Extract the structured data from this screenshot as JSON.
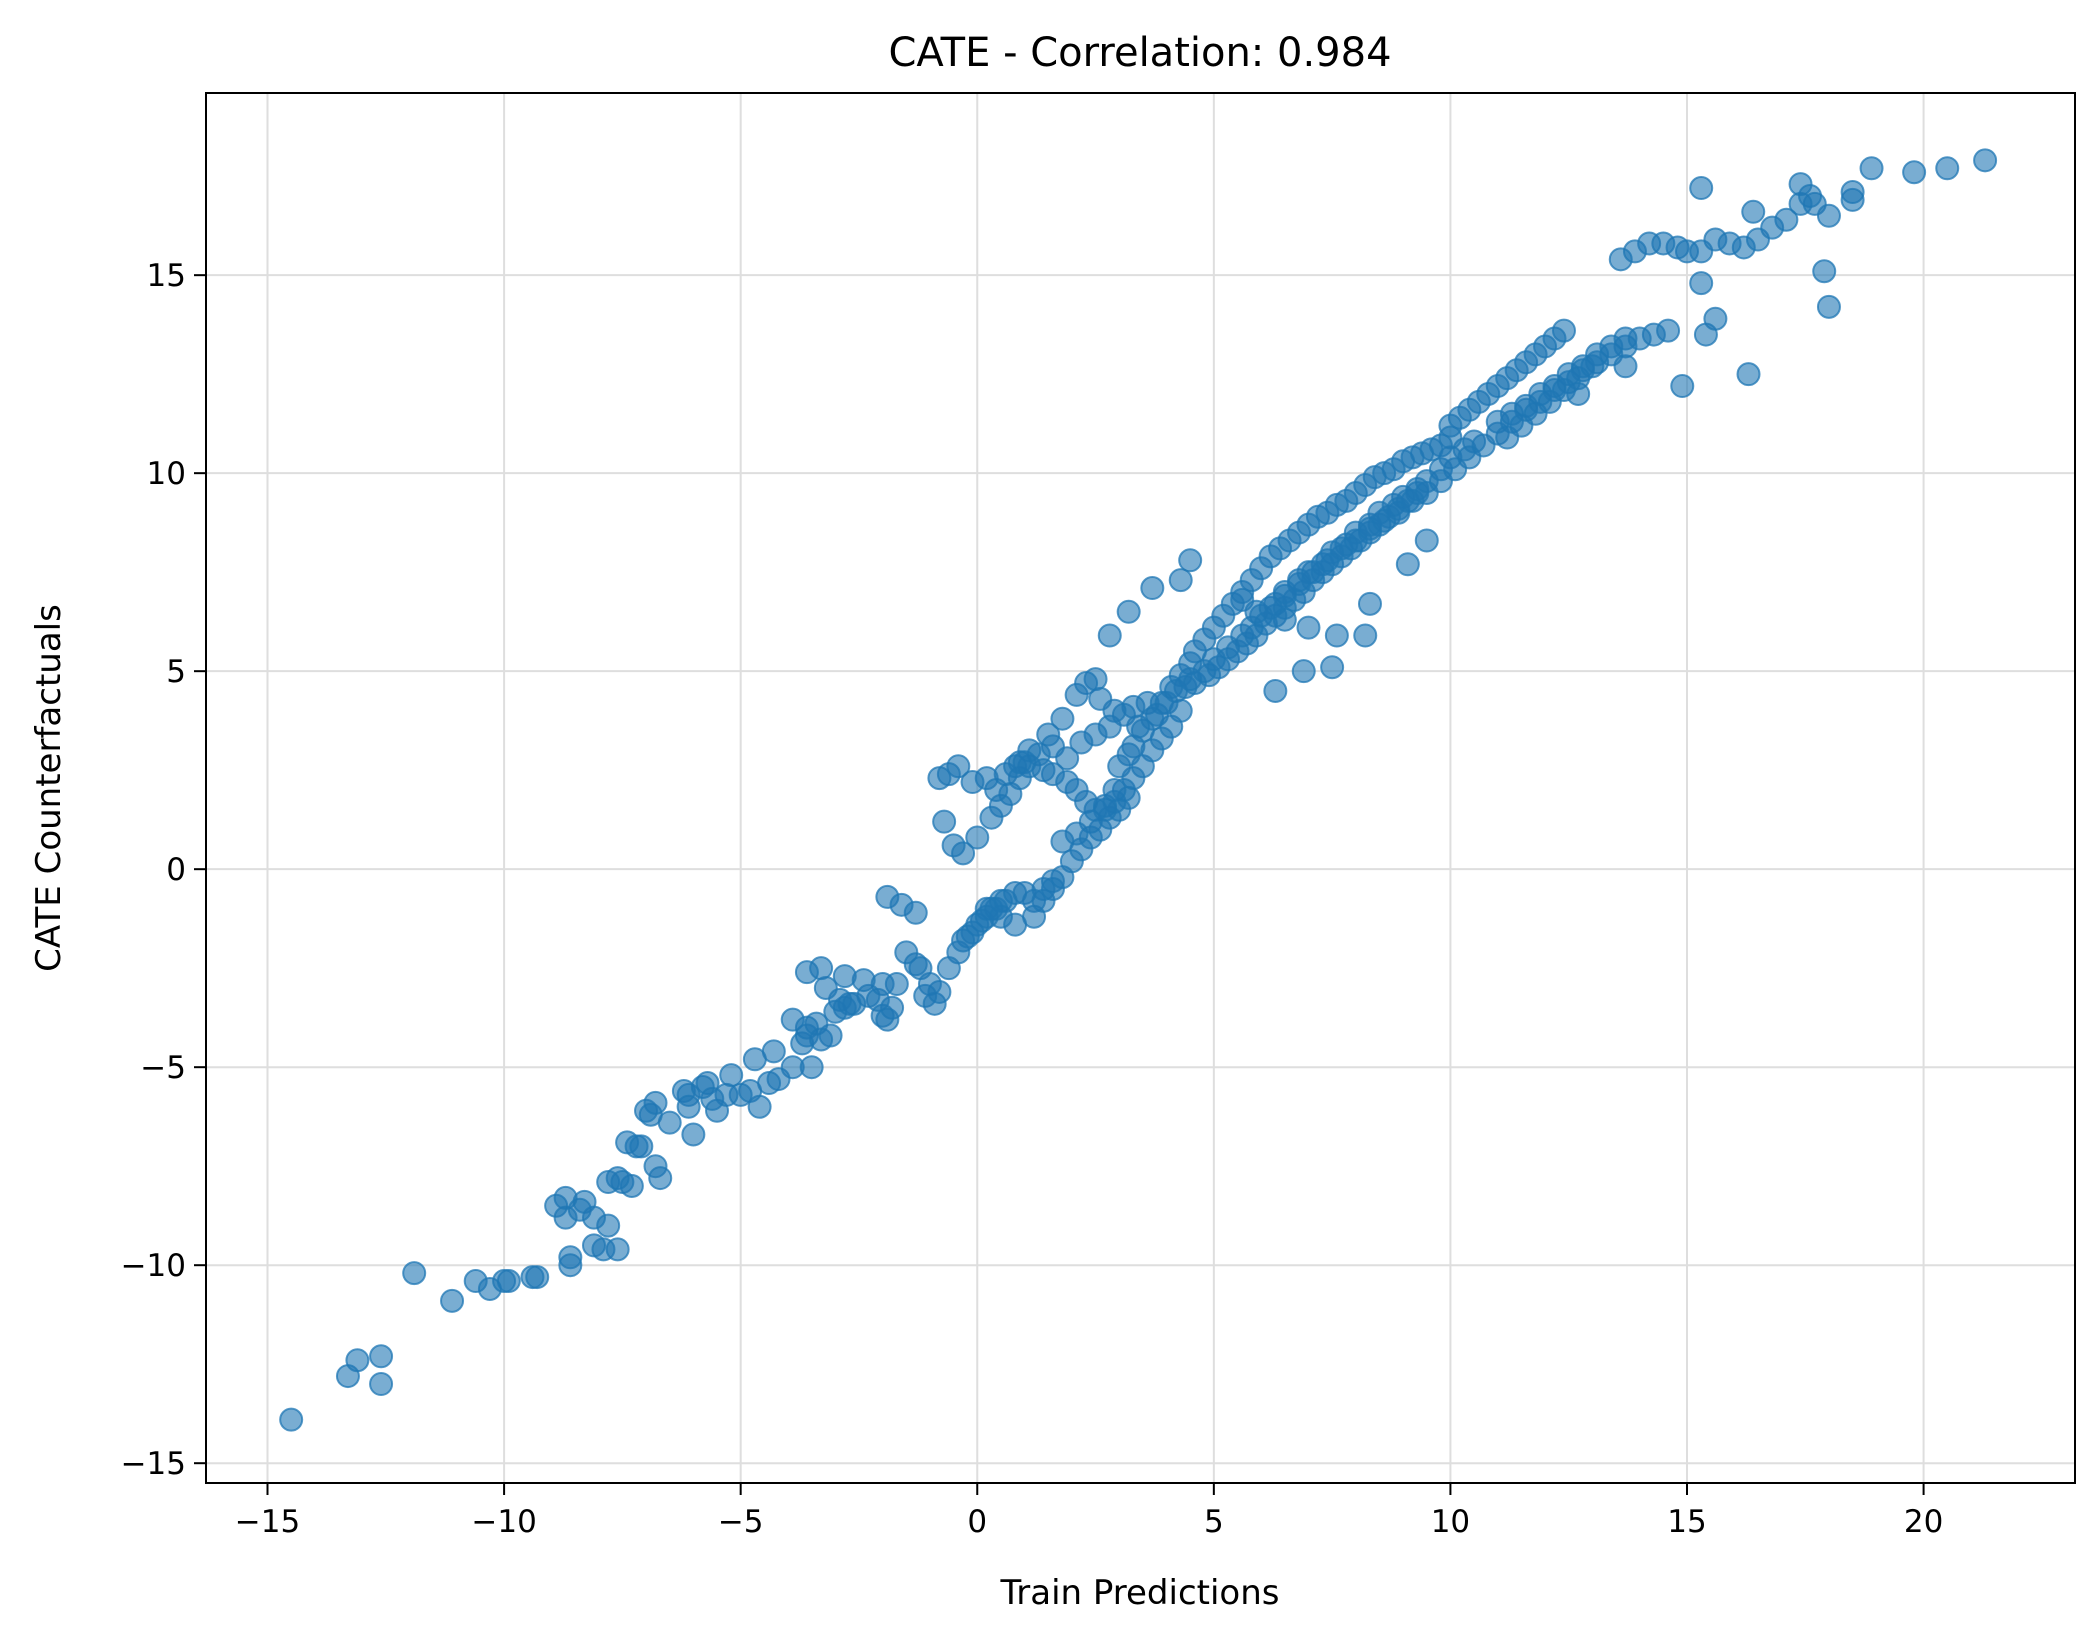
{
  "chart_data": {
    "type": "scatter",
    "title": "CATE - Correlation: 0.984",
    "xlabel": "Train Predictions",
    "ylabel": "CATE Counterfactuals",
    "xlim": [
      -16.3,
      23.2
    ],
    "ylim": [
      -15.5,
      19.6
    ],
    "xticks": [
      -15,
      -10,
      -5,
      0,
      5,
      10,
      15,
      20
    ],
    "xtick_labels": [
      "−15",
      "−10",
      "−5",
      "0",
      "5",
      "10",
      "15",
      "20"
    ],
    "yticks": [
      -15,
      -10,
      -5,
      0,
      5,
      10,
      15
    ],
    "ytick_labels": [
      "−15",
      "−10",
      "−5",
      "0",
      "5",
      "10",
      "15"
    ],
    "grid": true,
    "marker_color": "#1f77b4",
    "marker_alpha": 0.6,
    "series": [
      {
        "x": [
          -14.5,
          -13.3,
          -13.1,
          -12.6,
          -12.6,
          -11.9,
          -11.1,
          -10.6,
          -10.3,
          -10.0,
          -9.9,
          -9.4,
          -9.3,
          -8.9,
          -8.7,
          -8.6,
          -8.7,
          -8.6,
          -8.3,
          -8.1,
          -7.9,
          -7.8,
          -7.8,
          -7.6,
          -7.5,
          -7.4,
          -7.3,
          -7.2,
          -7.0,
          -6.9,
          -6.8,
          -6.8,
          -6.7,
          -6.2,
          -6.1,
          -6.0,
          -5.8,
          -5.7,
          -5.5,
          -5.2,
          -5.0,
          -4.8,
          -4.6,
          -4.4,
          -4.2,
          -3.9,
          -3.7,
          -3.6,
          -3.5,
          -3.6,
          -3.4,
          -3.3,
          -3.1,
          -3.0,
          -2.9,
          -2.8,
          -3.3,
          -2.8,
          -2.6,
          -2.3,
          -2.1,
          -2.0,
          -1.9,
          -1.8,
          -2.0,
          -1.7,
          -1.5,
          -1.3,
          -1.2,
          -1.0,
          -1.1,
          -0.9,
          -0.8,
          -0.6,
          -0.4,
          -0.3,
          -0.1,
          0.1,
          0.3,
          0.5,
          -0.2,
          0.0,
          0.2,
          0.4,
          0.6,
          0.8,
          1.0,
          1.2,
          1.4,
          1.6,
          1.2,
          1.4,
          1.6,
          1.8,
          2.0,
          2.2,
          2.4,
          2.6,
          2.8,
          3.0,
          3.2,
          -0.8,
          -0.6,
          -0.4,
          -0.1,
          0.2,
          0.4,
          0.6,
          0.8,
          1.0,
          1.3,
          1.6,
          1.9,
          2.2,
          2.5,
          2.8,
          3.1,
          3.3,
          3.6,
          1.8,
          2.1,
          2.4,
          2.7,
          2.9,
          3.1,
          3.3,
          3.5,
          3.7,
          3.9,
          4.1,
          4.3,
          -0.7,
          -0.5,
          -0.3,
          0.0,
          0.3,
          0.5,
          0.7,
          0.9,
          1.1,
          1.4,
          1.6,
          1.9,
          2.1,
          2.3,
          2.5,
          2.7,
          2.9,
          3.0,
          3.2,
          3.3,
          3.5,
          3.7,
          3.9,
          4.1,
          4.3,
          4.5,
          4.6,
          4.8,
          5.0,
          5.2,
          5.4,
          5.6,
          5.8,
          6.0,
          6.2,
          6.4,
          6.6,
          6.8,
          7.0,
          7.2,
          7.4,
          7.6,
          7.8,
          8.0,
          8.2,
          8.4,
          8.6,
          8.8,
          9.0,
          9.2,
          9.4,
          9.6,
          9.8,
          10.0,
          4.4,
          4.6,
          4.9,
          5.1,
          5.3,
          5.5,
          5.7,
          5.9,
          6.1,
          6.3,
          6.5,
          6.7,
          6.9,
          7.1,
          7.3,
          7.5,
          7.7,
          7.9,
          8.1,
          8.3,
          8.5,
          8.7,
          8.9,
          9.1,
          9.3,
          3.8,
          4.0,
          4.2,
          4.5,
          4.8,
          5.0,
          5.3,
          5.6,
          5.8,
          6.0,
          6.3,
          6.5,
          6.8,
          7.0,
          7.3,
          7.5,
          7.8,
          8.0,
          8.3,
          8.5,
          8.8,
          9.0,
          9.3,
          9.5,
          9.8,
          10.0,
          10.3,
          10.5,
          5.6,
          5.9,
          6.2,
          6.5,
          6.8,
          7.1,
          7.4,
          7.7,
          8.0,
          8.3,
          8.6,
          8.9,
          9.2,
          9.5,
          9.8,
          10.1,
          10.4,
          10.7,
          11.0,
          11.3,
          11.6,
          11.9,
          12.2,
          12.5,
          12.8,
          13.1,
          13.4,
          13.7,
          14.0,
          14.3,
          14.6,
          11.0,
          11.3,
          11.6,
          11.9,
          12.2,
          12.5,
          12.8,
          13.1,
          13.4,
          13.7,
          11.2,
          11.5,
          11.8,
          12.1,
          12.4,
          12.7,
          13.0,
          10.0,
          10.2,
          10.4,
          10.6,
          10.8,
          11.0,
          11.2,
          11.4,
          11.6,
          11.8,
          12.0,
          12.2,
          12.4,
          13.6,
          13.9,
          14.2,
          14.5,
          14.8,
          15.0,
          15.3,
          15.6,
          15.9,
          16.2,
          16.5,
          16.8,
          17.1,
          17.4,
          17.7,
          18.0,
          18.5,
          18.9,
          19.8,
          20.5,
          21.3,
          15.3,
          15.4,
          16.4,
          17.4,
          17.6,
          18.5,
          17.9,
          18.0,
          14.9,
          15.3,
          15.6,
          16.3,
          13.7,
          12.7,
          6.3,
          6.9,
          7.5,
          8.2,
          4.5,
          4.3,
          3.7,
          3.2,
          2.8,
          2.5,
          2.1,
          1.8,
          1.5,
          1.1,
          0.9,
          2.3,
          2.6,
          2.9,
          3.4,
          6.5,
          7.0,
          7.6,
          8.3,
          9.1,
          9.5,
          -1.9,
          -1.6,
          -1.3,
          0.2,
          0.5,
          0.8,
          -2.4,
          -2.7,
          -3.2,
          -3.6,
          -3.9,
          -4.3,
          -4.7,
          -5.3,
          -5.6,
          -6.1,
          -6.5,
          -7.1,
          -7.6,
          -8.1,
          -8.4
        ],
        "y": [
          -13.9,
          -12.8,
          -12.4,
          -12.3,
          -13.0,
          -10.2,
          -10.9,
          -10.4,
          -10.6,
          -10.4,
          -10.4,
          -10.3,
          -10.3,
          -8.5,
          -8.8,
          -10.0,
          -8.3,
          -9.8,
          -8.4,
          -9.5,
          -9.6,
          -9.0,
          -7.9,
          -9.6,
          -7.9,
          -6.9,
          -8.0,
          -7.0,
          -6.1,
          -6.2,
          -5.9,
          -7.5,
          -7.8,
          -5.6,
          -5.7,
          -6.7,
          -5.5,
          -5.4,
          -6.1,
          -5.2,
          -5.7,
          -5.6,
          -6.0,
          -5.4,
          -5.3,
          -5.0,
          -4.4,
          -4.0,
          -5.0,
          -4.2,
          -3.9,
          -4.3,
          -4.2,
          -3.6,
          -3.3,
          -2.7,
          -2.5,
          -3.5,
          -3.4,
          -3.2,
          -3.3,
          -3.7,
          -3.8,
          -3.5,
          -2.9,
          -2.9,
          -2.1,
          -2.4,
          -2.5,
          -2.9,
          -3.2,
          -3.4,
          -3.1,
          -2.5,
          -2.1,
          -1.8,
          -1.6,
          -1.3,
          -1.0,
          -0.8,
          -1.7,
          -1.4,
          -1.2,
          -1.0,
          -0.8,
          -0.6,
          -0.6,
          -0.8,
          -0.5,
          -0.3,
          -1.2,
          -0.8,
          -0.5,
          -0.2,
          0.2,
          0.5,
          0.8,
          1.0,
          1.3,
          1.5,
          1.8,
          2.3,
          2.4,
          2.6,
          2.2,
          2.3,
          2.0,
          2.4,
          2.6,
          2.7,
          2.9,
          3.1,
          2.8,
          3.2,
          3.4,
          3.6,
          3.9,
          4.1,
          4.2,
          0.7,
          0.9,
          1.2,
          1.5,
          1.7,
          2.0,
          2.3,
          2.6,
          3.0,
          3.3,
          3.6,
          4.0,
          1.2,
          0.6,
          0.4,
          0.8,
          1.3,
          1.6,
          1.9,
          2.3,
          2.6,
          2.5,
          2.4,
          2.2,
          2.0,
          1.7,
          1.5,
          1.6,
          2.0,
          2.6,
          2.9,
          3.1,
          3.5,
          3.8,
          4.2,
          4.6,
          4.9,
          5.2,
          5.5,
          5.8,
          6.1,
          6.4,
          6.7,
          7.0,
          7.3,
          7.6,
          7.9,
          8.1,
          8.3,
          8.5,
          8.7,
          8.9,
          9.0,
          9.2,
          9.3,
          9.5,
          9.7,
          9.9,
          10.0,
          10.1,
          10.3,
          10.4,
          10.5,
          10.6,
          10.7,
          10.9,
          4.6,
          4.7,
          4.9,
          5.1,
          5.3,
          5.5,
          5.7,
          5.9,
          6.2,
          6.4,
          6.6,
          6.8,
          7.0,
          7.3,
          7.5,
          7.7,
          7.9,
          8.1,
          8.3,
          8.5,
          8.7,
          8.9,
          9.1,
          9.3,
          9.5,
          3.9,
          4.2,
          4.5,
          4.8,
          5.0,
          5.3,
          5.6,
          5.9,
          6.1,
          6.4,
          6.7,
          6.9,
          7.2,
          7.5,
          7.7,
          8.0,
          8.2,
          8.5,
          8.7,
          9.0,
          9.2,
          9.4,
          9.6,
          9.8,
          10.1,
          10.4,
          10.6,
          10.8,
          6.8,
          6.5,
          6.6,
          7.0,
          7.3,
          7.5,
          7.8,
          8.1,
          8.3,
          8.6,
          8.8,
          9.0,
          9.3,
          9.5,
          9.8,
          10.1,
          10.4,
          10.7,
          11.0,
          11.3,
          11.6,
          11.8,
          12.1,
          12.3,
          12.6,
          12.8,
          13.0,
          13.2,
          13.4,
          13.5,
          13.6,
          11.3,
          11.5,
          11.7,
          12.0,
          12.2,
          12.5,
          12.7,
          13.0,
          13.2,
          13.4,
          10.9,
          11.2,
          11.5,
          11.8,
          12.1,
          12.4,
          12.7,
          11.2,
          11.4,
          11.6,
          11.8,
          12.0,
          12.2,
          12.4,
          12.6,
          12.8,
          13.0,
          13.2,
          13.4,
          13.6,
          15.4,
          15.6,
          15.8,
          15.8,
          15.7,
          15.6,
          15.6,
          15.9,
          15.8,
          15.7,
          15.9,
          16.2,
          16.4,
          16.8,
          16.8,
          16.5,
          16.9,
          17.7,
          17.6,
          17.7,
          17.9,
          17.2,
          13.5,
          16.6,
          17.3,
          17.0,
          17.1,
          15.1,
          14.2,
          12.2,
          14.8,
          13.9,
          12.5,
          12.7,
          12.0,
          4.5,
          5.0,
          5.1,
          5.9,
          7.8,
          7.3,
          7.1,
          6.5,
          5.9,
          4.8,
          4.4,
          3.8,
          3.4,
          3.0,
          2.7,
          4.7,
          4.3,
          4.0,
          3.6,
          6.3,
          6.1,
          5.9,
          6.7,
          7.7,
          8.3,
          -0.7,
          -0.9,
          -1.1,
          -1.0,
          -1.2,
          -1.4,
          -2.8,
          -3.4,
          -3.0,
          -2.6,
          -3.8,
          -4.6,
          -4.8,
          -5.7,
          -5.8,
          -6.0,
          -6.4,
          -7.0,
          -7.8,
          -8.8,
          -8.6
        ]
      }
    ]
  }
}
